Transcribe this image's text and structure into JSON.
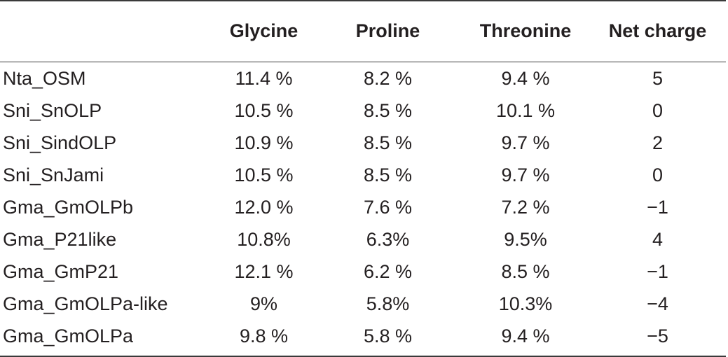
{
  "table": {
    "columns": [
      "",
      "Glycine",
      "Proline",
      "Threonine",
      "Net charge"
    ],
    "rows": [
      {
        "name": "Nta_OSM",
        "glycine": "11.4 %",
        "proline": "8.2 %",
        "threonine": "9.4 %",
        "net_charge": "5"
      },
      {
        "name": "Sni_SnOLP",
        "glycine": "10.5 %",
        "proline": "8.5 %",
        "threonine": "10.1 %",
        "net_charge": "0"
      },
      {
        "name": "Sni_SindOLP",
        "glycine": "10.9 %",
        "proline": "8.5 %",
        "threonine": "9.7 %",
        "net_charge": "2"
      },
      {
        "name": "Sni_SnJami",
        "glycine": "10.5 %",
        "proline": "8.5 %",
        "threonine": "9.7 %",
        "net_charge": "0"
      },
      {
        "name": "Gma_GmOLPb",
        "glycine": "12.0 %",
        "proline": "7.6 %",
        "threonine": "7.2 %",
        "net_charge": "−1"
      },
      {
        "name": "Gma_P21like",
        "glycine": "10.8%",
        "proline": "6.3%",
        "threonine": "9.5%",
        "net_charge": "4"
      },
      {
        "name": "Gma_GmP21",
        "glycine": "12.1 %",
        "proline": "6.2 %",
        "threonine": "8.5 %",
        "net_charge": "−1"
      },
      {
        "name": "Gma_GmOLPa-like",
        "glycine": "9%",
        "proline": "5.8%",
        "threonine": "10.3%",
        "net_charge": "−4"
      },
      {
        "name": "Gma_GmOLPa",
        "glycine": "9.8 %",
        "proline": "5.8 %",
        "threonine": "9.4 %",
        "net_charge": "−5"
      }
    ]
  }
}
